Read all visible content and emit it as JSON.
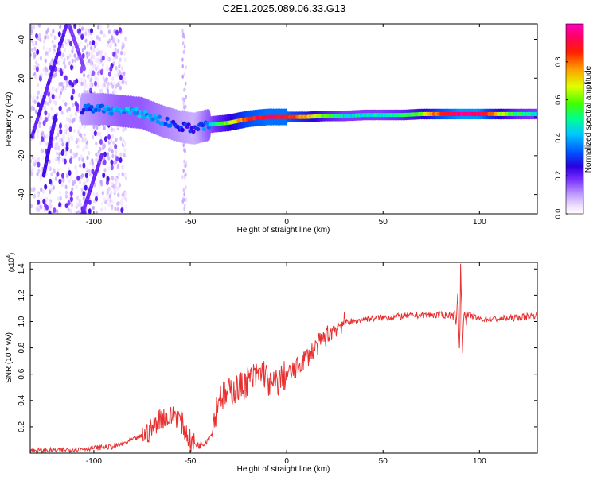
{
  "title": "C2E1.2025.089.06.33.G13",
  "chart_data": [
    {
      "type": "heatmap",
      "xlabel": "Height of straight line (km)",
      "ylabel": "Frequency (Hz)",
      "xlim": [
        -133,
        130
      ],
      "ylim": [
        -50,
        48
      ],
      "xticks": [
        -100,
        -50,
        0,
        50,
        100
      ],
      "xtick_labels": [
        "-100",
        "-50",
        "0",
        "50",
        "100"
      ],
      "yticks": [
        -40,
        -20,
        0,
        20,
        40
      ],
      "ytick_labels": [
        "-40",
        "-20",
        "0",
        "20",
        "40"
      ],
      "colorbar": {
        "label": "Normalized spectral amplitude",
        "range": [
          0,
          1
        ],
        "ticks": [
          0.0,
          0.2,
          0.4,
          0.6,
          0.8
        ],
        "tick_labels": [
          "0.0",
          "0.2",
          "0.4",
          "0.6",
          "0.8"
        ],
        "colormap": [
          "#ffffff",
          "#f0e0ff",
          "#c0a0ff",
          "#7a30ff",
          "#2a00e0",
          "#0050ff",
          "#00c8ff",
          "#00ff90",
          "#40ff00",
          "#e0ff00",
          "#ffa000",
          "#ff2000",
          "#ff0060",
          "#ff00c0"
        ]
      },
      "ridge": {
        "x": [
          -105,
          -95,
          -85,
          -75,
          -65,
          -55,
          -48,
          -40,
          -30,
          -20,
          -10,
          0,
          10,
          20,
          30,
          40,
          50,
          60,
          70,
          80,
          90,
          100,
          110,
          120,
          130
        ],
        "freq": [
          4,
          4,
          3,
          2,
          -2,
          -5,
          -6,
          -4,
          -3,
          -1,
          0,
          0,
          0,
          0.5,
          0.5,
          1,
          1,
          1,
          1.5,
          1.5,
          1.5,
          1.5,
          1.5,
          1.5,
          1.5
        ],
        "amplitude": [
          0.35,
          0.4,
          0.45,
          0.45,
          0.4,
          0.35,
          0.3,
          0.45,
          0.65,
          0.85,
          0.9,
          0.9,
          0.75,
          0.6,
          0.5,
          0.5,
          0.5,
          0.55,
          0.65,
          0.85,
          0.95,
          0.95,
          0.7,
          0.55,
          0.5
        ]
      }
    },
    {
      "type": "line",
      "xlabel": "Height of straight line (km)",
      "ylabel": "SNR (10 * v/v)",
      "y_multiplier_label": "(x10",
      "y_multiplier_exp": "4",
      "y_multiplier_close": ")",
      "xlim": [
        -133,
        130
      ],
      "ylim": [
        0,
        1.45
      ],
      "xticks": [
        -100,
        -50,
        0,
        50,
        100
      ],
      "xtick_labels": [
        "-100",
        "-50",
        "0",
        "50",
        "100"
      ],
      "yticks": [
        0.2,
        0.4,
        0.6,
        0.8,
        1.0,
        1.2,
        1.4
      ],
      "ytick_labels": [
        "0.2",
        "0.4",
        "0.6",
        "0.8",
        "1.0",
        "1.2",
        "1.4"
      ],
      "color": "#e83030",
      "series": [
        {
          "x": [
            -133,
            -120,
            -110,
            -100,
            -90,
            -85,
            -80,
            -75,
            -70,
            -67,
            -64,
            -61,
            -58,
            -55,
            -52,
            -50,
            -48,
            -45,
            -42,
            -39,
            -37,
            -35,
            -32,
            -28,
            -24,
            -20,
            -16,
            -12,
            -8,
            -4,
            0,
            4,
            8,
            12,
            16,
            20,
            25,
            30,
            35,
            40,
            50,
            60,
            70,
            80,
            85,
            88,
            90,
            92,
            95,
            100,
            110,
            120,
            130
          ],
          "y": [
            0.02,
            0.02,
            0.03,
            0.04,
            0.05,
            0.07,
            0.1,
            0.13,
            0.18,
            0.25,
            0.28,
            0.26,
            0.3,
            0.25,
            0.15,
            0.09,
            0.07,
            0.06,
            0.09,
            0.14,
            0.3,
            0.45,
            0.43,
            0.48,
            0.5,
            0.55,
            0.58,
            0.62,
            0.5,
            0.55,
            0.6,
            0.62,
            0.7,
            0.75,
            0.82,
            0.88,
            0.95,
            1.0,
            1.0,
            1.02,
            1.03,
            1.04,
            1.05,
            1.05,
            1.05,
            1.05,
            1.05,
            1.02,
            1.05,
            1.02,
            1.02,
            1.03,
            1.05
          ],
          "spike": {
            "x": 90,
            "high": 1.44,
            "low": 0.76
          }
        }
      ]
    }
  ]
}
